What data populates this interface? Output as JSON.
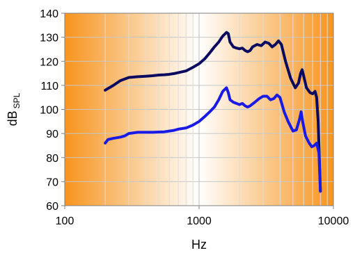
{
  "chart_data": {
    "type": "line",
    "xlabel": "Hz",
    "ylabel": "dB",
    "ylabel_subscript": "SPL",
    "xscale": "log",
    "xlim": [
      100,
      10000
    ],
    "ylim": [
      60,
      140
    ],
    "x_ticks": [
      100,
      1000,
      10000
    ],
    "x_tick_labels": [
      "100",
      "1000",
      "10000"
    ],
    "y_ticks": [
      60,
      70,
      80,
      90,
      100,
      110,
      120,
      130,
      140
    ],
    "y_tick_labels": [
      "60",
      "70",
      "80",
      "90",
      "100",
      "110",
      "120",
      "130",
      "140"
    ],
    "grid": true,
    "legend": false,
    "background_gradient": {
      "edge": "#f7941d",
      "center": "#ffffff"
    },
    "series": [
      {
        "color": "#0a0a60",
        "points": [
          [
            200,
            108
          ],
          [
            230,
            110
          ],
          [
            260,
            112
          ],
          [
            300,
            113.3
          ],
          [
            350,
            113.6
          ],
          [
            400,
            113.8
          ],
          [
            450,
            114
          ],
          [
            500,
            114.3
          ],
          [
            550,
            114.4
          ],
          [
            600,
            114.6
          ],
          [
            650,
            114.9
          ],
          [
            700,
            115.3
          ],
          [
            800,
            116
          ],
          [
            900,
            117.5
          ],
          [
            1000,
            119
          ],
          [
            1100,
            121
          ],
          [
            1200,
            123.5
          ],
          [
            1300,
            126
          ],
          [
            1400,
            128
          ],
          [
            1500,
            130.5
          ],
          [
            1600,
            132
          ],
          [
            1650,
            131.5
          ],
          [
            1700,
            128
          ],
          [
            1800,
            126
          ],
          [
            1900,
            125.5
          ],
          [
            2000,
            125.2
          ],
          [
            2100,
            125.5
          ],
          [
            2200,
            124.5
          ],
          [
            2300,
            124
          ],
          [
            2400,
            124.5
          ],
          [
            2500,
            126
          ],
          [
            2700,
            127
          ],
          [
            2900,
            126.5
          ],
          [
            3100,
            128
          ],
          [
            3300,
            127.5
          ],
          [
            3500,
            126
          ],
          [
            3700,
            127
          ],
          [
            3900,
            128.5
          ],
          [
            4100,
            127
          ],
          [
            4400,
            120
          ],
          [
            4800,
            113
          ],
          [
            5200,
            109
          ],
          [
            5500,
            111
          ],
          [
            5700,
            115
          ],
          [
            5850,
            116.5
          ],
          [
            6000,
            114
          ],
          [
            6300,
            109
          ],
          [
            6700,
            107
          ],
          [
            7000,
            106.5
          ],
          [
            7300,
            107.5
          ],
          [
            7500,
            105
          ],
          [
            7700,
            95
          ],
          [
            8000,
            66
          ]
        ]
      },
      {
        "color": "#1a1ae6",
        "points": [
          [
            200,
            86
          ],
          [
            210,
            87.5
          ],
          [
            230,
            88
          ],
          [
            260,
            88.5
          ],
          [
            280,
            89
          ],
          [
            300,
            90
          ],
          [
            350,
            90.5
          ],
          [
            400,
            90.5
          ],
          [
            450,
            90.5
          ],
          [
            500,
            90.6
          ],
          [
            550,
            90.7
          ],
          [
            600,
            91
          ],
          [
            650,
            91.3
          ],
          [
            700,
            91.8
          ],
          [
            800,
            92.3
          ],
          [
            900,
            93.5
          ],
          [
            1000,
            95
          ],
          [
            1100,
            97
          ],
          [
            1200,
            99
          ],
          [
            1300,
            101
          ],
          [
            1400,
            104
          ],
          [
            1500,
            107.5
          ],
          [
            1600,
            109
          ],
          [
            1650,
            107
          ],
          [
            1700,
            104
          ],
          [
            1800,
            103
          ],
          [
            1900,
            102.5
          ],
          [
            2000,
            102
          ],
          [
            2100,
            102.5
          ],
          [
            2200,
            101.5
          ],
          [
            2300,
            101
          ],
          [
            2400,
            101.5
          ],
          [
            2600,
            103
          ],
          [
            2800,
            104.5
          ],
          [
            3000,
            105.5
          ],
          [
            3200,
            105.5
          ],
          [
            3400,
            104
          ],
          [
            3600,
            104.5
          ],
          [
            3800,
            106
          ],
          [
            4000,
            105
          ],
          [
            4300,
            99
          ],
          [
            4600,
            95
          ],
          [
            5000,
            91
          ],
          [
            5300,
            91.5
          ],
          [
            5600,
            96
          ],
          [
            5750,
            99
          ],
          [
            5900,
            95
          ],
          [
            6200,
            89
          ],
          [
            6600,
            86
          ],
          [
            6900,
            84.5
          ],
          [
            7200,
            85
          ],
          [
            7500,
            86
          ],
          [
            7800,
            82
          ],
          [
            8000,
            66
          ]
        ]
      }
    ]
  }
}
